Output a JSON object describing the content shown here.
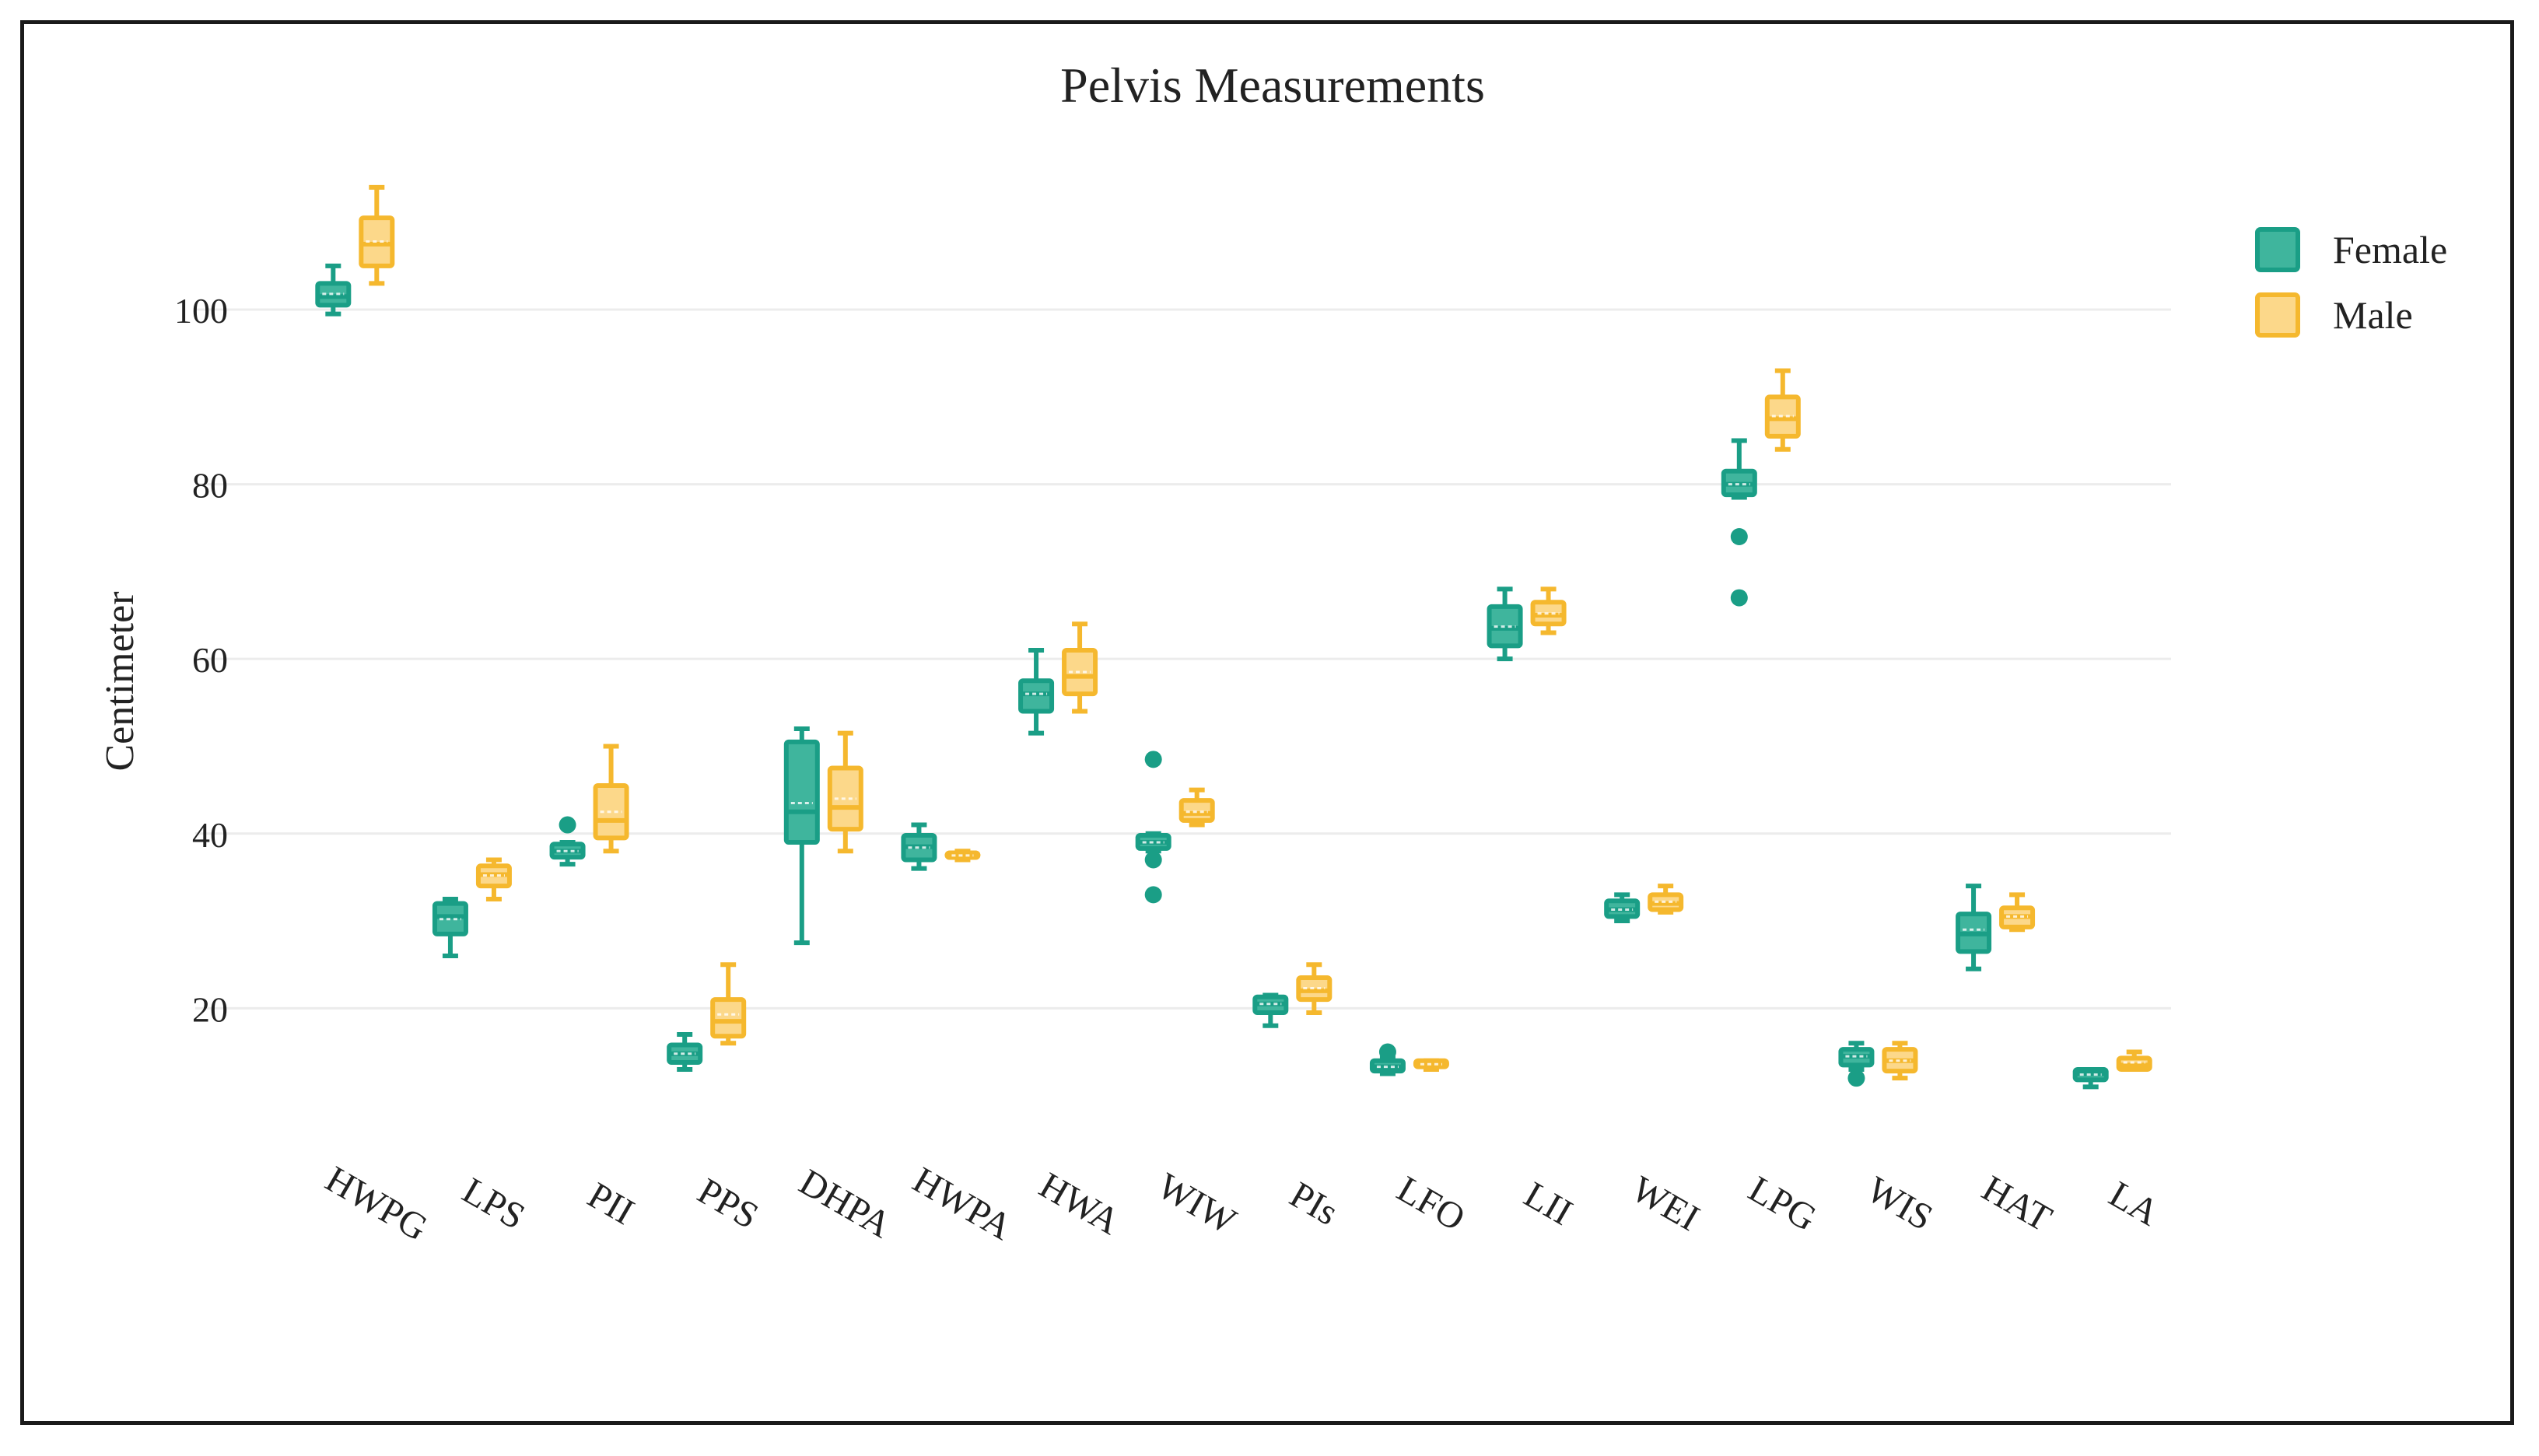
{
  "chart_data": {
    "type": "box",
    "title": "Pelvis Measurements",
    "ylabel": "Centimeter",
    "xlabel": "",
    "ylim": [
      4,
      122
    ],
    "yticks": [
      20,
      40,
      60,
      80,
      100
    ],
    "ytick_labels": [
      "20",
      "40",
      "60",
      "80",
      "100"
    ],
    "grid": true,
    "legend_position": "top-right",
    "categories": [
      "HWPG",
      "LPS",
      "PII",
      "PPS",
      "DHPA",
      "HWPA",
      "HWA",
      "WIW",
      "PIs",
      "LFO",
      "LII",
      "WEI",
      "LPG",
      "WIS",
      "HAT",
      "LA"
    ],
    "series": [
      {
        "name": "Female",
        "color": "#1a9e86",
        "fill": "#3fb59d",
        "boxes": [
          {
            "min": 99.5,
            "q1": 100.5,
            "median": 101.5,
            "q3": 103,
            "max": 105,
            "mean": 101.8,
            "outliers": []
          },
          {
            "min": 26,
            "q1": 28.5,
            "median": 30.5,
            "q3": 32,
            "max": 32.5,
            "mean": 30.2,
            "outliers": []
          },
          {
            "min": 36.5,
            "q1": 37.3,
            "median": 38,
            "q3": 38.8,
            "max": 39,
            "mean": 38,
            "outliers": [
              41
            ]
          },
          {
            "min": 13,
            "q1": 13.8,
            "median": 14.8,
            "q3": 15.8,
            "max": 17,
            "mean": 14.8,
            "outliers": []
          },
          {
            "min": 27.5,
            "q1": 39,
            "median": 42.5,
            "q3": 50.5,
            "max": 52,
            "mean": 43.5,
            "outliers": []
          },
          {
            "min": 36,
            "q1": 37,
            "median": 38.5,
            "q3": 39.8,
            "max": 41,
            "mean": 38.4,
            "outliers": []
          },
          {
            "min": 51.5,
            "q1": 54,
            "median": 56,
            "q3": 57.5,
            "max": 61,
            "mean": 56,
            "outliers": []
          },
          {
            "min": 38,
            "q1": 38.3,
            "median": 39,
            "q3": 39.8,
            "max": 40,
            "mean": 39,
            "outliers": [
              48.5,
              37,
              33
            ]
          },
          {
            "min": 18,
            "q1": 19.5,
            "median": 20.5,
            "q3": 21.3,
            "max": 21.5,
            "mean": 20.5,
            "outliers": []
          },
          {
            "min": 12.5,
            "q1": 12.8,
            "median": 13.3,
            "q3": 14,
            "max": 14.3,
            "mean": 13.3,
            "outliers": [
              15
            ]
          },
          {
            "min": 60,
            "q1": 61.5,
            "median": 63.5,
            "q3": 66,
            "max": 68,
            "mean": 63.7,
            "outliers": []
          },
          {
            "min": 30,
            "q1": 30.5,
            "median": 31.3,
            "q3": 32.3,
            "max": 33,
            "mean": 31.3,
            "outliers": []
          },
          {
            "min": 78.5,
            "q1": 78.8,
            "median": 80,
            "q3": 81.5,
            "max": 85,
            "mean": 80,
            "outliers": [
              74,
              67
            ]
          },
          {
            "min": 13,
            "q1": 13.5,
            "median": 14.5,
            "q3": 15.3,
            "max": 16,
            "mean": 14.5,
            "outliers": [
              12
            ]
          },
          {
            "min": 24.5,
            "q1": 26.5,
            "median": 28.5,
            "q3": 30.8,
            "max": 34,
            "mean": 29,
            "outliers": []
          },
          {
            "min": 11,
            "q1": 11.8,
            "median": 12.5,
            "q3": 13,
            "max": 13,
            "mean": 12.4,
            "outliers": []
          }
        ]
      },
      {
        "name": "Male",
        "color": "#f5b82e",
        "fill": "#fcd88a",
        "boxes": [
          {
            "min": 103,
            "q1": 105,
            "median": 107.5,
            "q3": 110.5,
            "max": 114,
            "mean": 107.8,
            "outliers": []
          },
          {
            "min": 32.5,
            "q1": 34,
            "median": 35.3,
            "q3": 36.3,
            "max": 37,
            "mean": 35.2,
            "outliers": []
          },
          {
            "min": 38,
            "q1": 39.5,
            "median": 41.5,
            "q3": 45.5,
            "max": 50,
            "mean": 42.5,
            "outliers": []
          },
          {
            "min": 16,
            "q1": 16.8,
            "median": 18.5,
            "q3": 21,
            "max": 25,
            "mean": 19.3,
            "outliers": []
          },
          {
            "min": 38,
            "q1": 40.5,
            "median": 43,
            "q3": 47.5,
            "max": 51.5,
            "mean": 44,
            "outliers": []
          },
          {
            "min": 37,
            "q1": 37.3,
            "median": 37.5,
            "q3": 37.8,
            "max": 38,
            "mean": 37.5,
            "outliers": []
          },
          {
            "min": 54,
            "q1": 56,
            "median": 58,
            "q3": 61,
            "max": 64,
            "mean": 58.5,
            "outliers": []
          },
          {
            "min": 41,
            "q1": 41.5,
            "median": 42.3,
            "q3": 43.8,
            "max": 45,
            "mean": 42.5,
            "outliers": []
          },
          {
            "min": 19.5,
            "q1": 21,
            "median": 22,
            "q3": 23.5,
            "max": 25,
            "mean": 22.3,
            "outliers": []
          },
          {
            "min": 13,
            "q1": 13.3,
            "median": 13.5,
            "q3": 14,
            "max": 14,
            "mean": 13.6,
            "outliers": []
          },
          {
            "min": 63,
            "q1": 64,
            "median": 65,
            "q3": 66.5,
            "max": 68,
            "mean": 65.2,
            "outliers": []
          },
          {
            "min": 31,
            "q1": 31.3,
            "median": 32,
            "q3": 33,
            "max": 34,
            "mean": 32.2,
            "outliers": []
          },
          {
            "min": 84,
            "q1": 85.5,
            "median": 87.5,
            "q3": 90,
            "max": 93,
            "mean": 87.8,
            "outliers": []
          },
          {
            "min": 12,
            "q1": 12.8,
            "median": 14,
            "q3": 15.3,
            "max": 16,
            "mean": 14,
            "outliers": []
          },
          {
            "min": 29,
            "q1": 29.3,
            "median": 30.5,
            "q3": 31.5,
            "max": 33,
            "mean": 30.5,
            "outliers": []
          },
          {
            "min": 13,
            "q1": 13,
            "median": 13.5,
            "q3": 14.3,
            "max": 15,
            "mean": 13.8,
            "outliers": []
          }
        ]
      }
    ]
  }
}
